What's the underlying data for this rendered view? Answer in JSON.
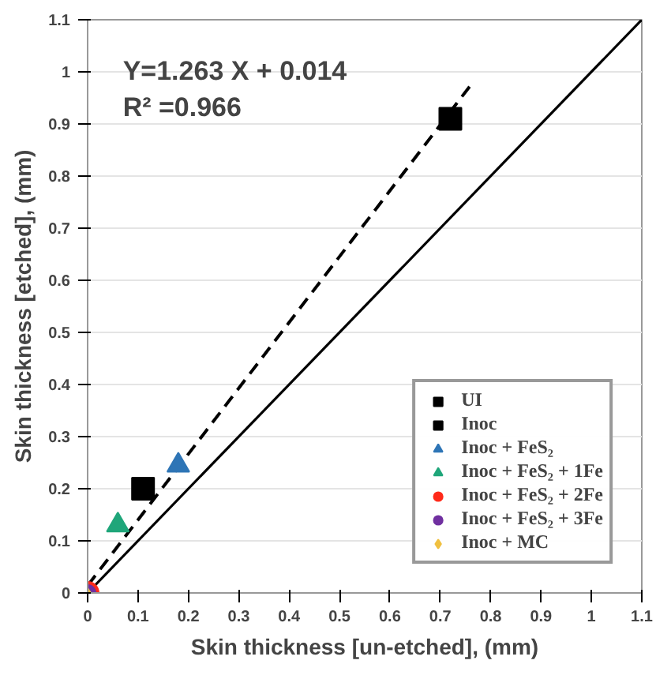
{
  "chart_data": {
    "type": "scatter",
    "xlabel": "Skin thickness [un-etched], (mm)",
    "ylabel": "Skin thickness [etched], (mm)",
    "xlim": [
      0,
      1.1
    ],
    "ylim": [
      0,
      1.1
    ],
    "xticks": [
      0,
      0.1,
      0.2,
      0.3,
      0.4,
      0.5,
      0.6,
      0.7,
      0.8,
      0.9,
      1,
      1.1
    ],
    "yticks": [
      0,
      0.1,
      0.2,
      0.3,
      0.4,
      0.5,
      0.6,
      0.7,
      0.8,
      0.9,
      1,
      1.1
    ],
    "grid": "y",
    "legend": "bottom right",
    "annotations": [
      "Y=1.263 X + 0.014",
      "R² =0.966"
    ],
    "series": [
      {
        "type": "line",
        "x": [
          0,
          1.1
        ],
        "values": [
          0,
          1.1
        ],
        "color": "#000000",
        "line_style": "solid"
      },
      {
        "type": "line",
        "x": [
          0,
          0.76
        ],
        "values": [
          0.014,
          0.974
        ],
        "color": "#000000",
        "line_style": "dashed"
      },
      {
        "name": "UI",
        "x": [
          0.72
        ],
        "values": [
          0.91
        ],
        "color": "#000000",
        "marker": "square"
      },
      {
        "name": "Inoc",
        "x": [
          0.11
        ],
        "values": [
          0.2
        ],
        "color": "#000000",
        "marker": "square"
      },
      {
        "name": "Inoc + FeS₂",
        "x": [
          0.18
        ],
        "values": [
          0.245
        ],
        "color": "#2e75b6",
        "marker": "triangle"
      },
      {
        "name": "Inoc + FeS₂ + 1Fe",
        "x": [
          0.06
        ],
        "values": [
          0.13
        ],
        "color": "#1fa67a",
        "marker": "triangle"
      },
      {
        "name": "Inoc + FeS₂ + 2Fe",
        "x": [
          0
        ],
        "values": [
          0
        ],
        "color": "#ff2a1a",
        "marker": "circle"
      },
      {
        "name": "Inoc + FeS₂ + 3Fe",
        "x": [
          0
        ],
        "values": [
          0
        ],
        "color": "#7030a0",
        "marker": "circle"
      },
      {
        "name": "Inoc + MC",
        "x": [
          0
        ],
        "values": [
          0
        ],
        "color": "#f0c040",
        "marker": "diamond"
      }
    ]
  }
}
